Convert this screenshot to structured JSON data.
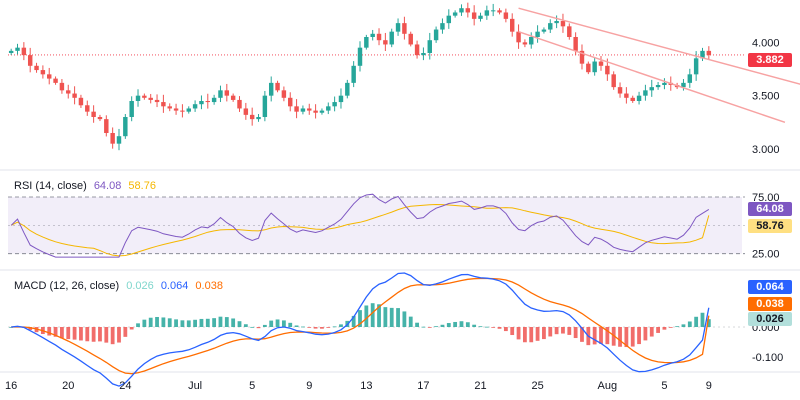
{
  "chart_data": [
    {
      "type": "candlestick",
      "pane": "price",
      "price_scale_ticks": [
        "4.000",
        "3.500",
        "3.000"
      ],
      "ylim": [
        2.85,
        4.35
      ],
      "last_price": "3.882",
      "series": [
        {
          "name": "OHLC",
          "description": "Daily candles, approximate closes read from chart",
          "values": [
            3.92,
            3.95,
            3.88,
            3.78,
            3.74,
            3.7,
            3.66,
            3.62,
            3.55,
            3.52,
            3.48,
            3.41,
            3.35,
            3.3,
            3.28,
            3.15,
            3.05,
            3.12,
            3.3,
            3.45,
            3.5,
            3.48,
            3.46,
            3.44,
            3.4,
            3.38,
            3.36,
            3.35,
            3.38,
            3.42,
            3.45,
            3.44,
            3.48,
            3.55,
            3.5,
            3.46,
            3.38,
            3.32,
            3.28,
            3.3,
            3.5,
            3.62,
            3.55,
            3.48,
            3.4,
            3.35,
            3.38,
            3.36,
            3.34,
            3.36,
            3.4,
            3.44,
            3.5,
            3.62,
            3.78,
            3.95,
            4.05,
            4.08,
            4.02,
            3.98,
            4.1,
            4.18,
            4.08,
            3.98,
            3.88,
            3.9,
            4.02,
            4.12,
            4.18,
            4.25,
            4.28,
            4.32,
            4.28,
            4.22,
            4.25,
            4.3,
            4.3,
            4.28,
            4.22,
            4.1,
            4.0,
            3.98,
            4.05,
            4.1,
            4.12,
            4.18,
            4.2,
            4.15,
            4.05,
            3.92,
            3.8,
            3.72,
            3.82,
            3.78,
            3.7,
            3.58,
            3.52,
            3.48,
            3.45,
            3.5,
            3.55,
            3.58,
            3.6,
            3.62,
            3.6,
            3.58,
            3.62,
            3.7,
            3.85,
            3.92,
            3.88
          ]
        }
      ],
      "trendlines": "descending channel (salmon)"
    },
    {
      "type": "line",
      "pane": "rsi",
      "title": "RSI (14, close)",
      "levels": [
        "75.00",
        "25.00"
      ],
      "ylim": [
        15,
        90
      ],
      "series": [
        {
          "name": "RSI",
          "value_label": "64.08",
          "color": "#7e57c2"
        },
        {
          "name": "RSI MA",
          "value_label": "58.76",
          "color": "#ffc107"
        }
      ]
    },
    {
      "type": "line",
      "pane": "macd",
      "title": "MACD (12, 26, close)",
      "scale_ticks": [
        "0.000",
        "-0.100"
      ],
      "series": [
        {
          "name": "Histogram",
          "value_label": "0.026",
          "color": "#26a69a"
        },
        {
          "name": "MACD",
          "value_label": "0.064",
          "color": "#2962ff"
        },
        {
          "name": "Signal",
          "value_label": "0.038",
          "color": "#ff6d00"
        }
      ]
    }
  ],
  "xaxis": {
    "ticks": [
      "16",
      "20",
      "24",
      "Jul",
      "5",
      "9",
      "13",
      "17",
      "21",
      "25",
      "Aug",
      "5",
      "9"
    ]
  },
  "panes": {
    "rsi": {
      "title_name": "RSI (14, close)",
      "v1": "64.08",
      "v2": "58.76"
    },
    "macd": {
      "title_name": "MACD (12, 26, close)",
      "v1": "0.026",
      "v2": "0.064",
      "v3": "0.038"
    }
  },
  "badges": {
    "price": "3.882",
    "rsi1": "64.08",
    "rsi2": "58.76",
    "macd1": "0.064",
    "macd2": "0.038",
    "macd3": "0.026"
  },
  "colors": {
    "up": "#26a69a",
    "down": "#ef5350",
    "price_badge": "#f23645",
    "rsi": "#7e57c2",
    "rsi_ma": "#f5b700",
    "macd": "#2962ff",
    "signal": "#ff6d00",
    "hist_pos": "#26a69a",
    "hist_neg": "#ef5350",
    "trendline": "#f7a2a2"
  }
}
